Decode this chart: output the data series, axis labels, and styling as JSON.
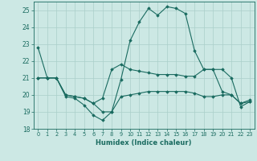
{
  "xlabel": "Humidex (Indice chaleur)",
  "xlim": [
    -0.5,
    23.5
  ],
  "ylim": [
    18,
    25.5
  ],
  "yticks": [
    18,
    19,
    20,
    21,
    22,
    23,
    24,
    25
  ],
  "xticks": [
    0,
    1,
    2,
    3,
    4,
    5,
    6,
    7,
    8,
    9,
    10,
    11,
    12,
    13,
    14,
    15,
    16,
    17,
    18,
    19,
    20,
    21,
    22,
    23
  ],
  "background_color": "#cce8e4",
  "grid_color": "#aacfca",
  "line_color": "#1a6b60",
  "line1": [
    22.8,
    21.0,
    21.0,
    19.9,
    19.8,
    19.4,
    18.8,
    18.5,
    19.0,
    20.9,
    23.2,
    24.3,
    25.1,
    24.7,
    25.2,
    25.1,
    24.8,
    22.6,
    21.5,
    21.5,
    21.5,
    21.0,
    19.3,
    19.6
  ],
  "line2": [
    21.0,
    21.0,
    21.0,
    20.0,
    19.9,
    19.8,
    19.5,
    19.8,
    21.5,
    21.8,
    21.5,
    21.4,
    21.3,
    21.2,
    21.2,
    21.2,
    21.1,
    21.1,
    21.5,
    21.5,
    20.2,
    20.0,
    19.5,
    19.7
  ],
  "line3": [
    21.0,
    21.0,
    21.0,
    20.0,
    19.9,
    19.8,
    19.5,
    19.0,
    19.0,
    19.9,
    20.0,
    20.1,
    20.2,
    20.2,
    20.2,
    20.2,
    20.2,
    20.1,
    19.9,
    19.9,
    20.0,
    20.0,
    19.5,
    19.6
  ]
}
